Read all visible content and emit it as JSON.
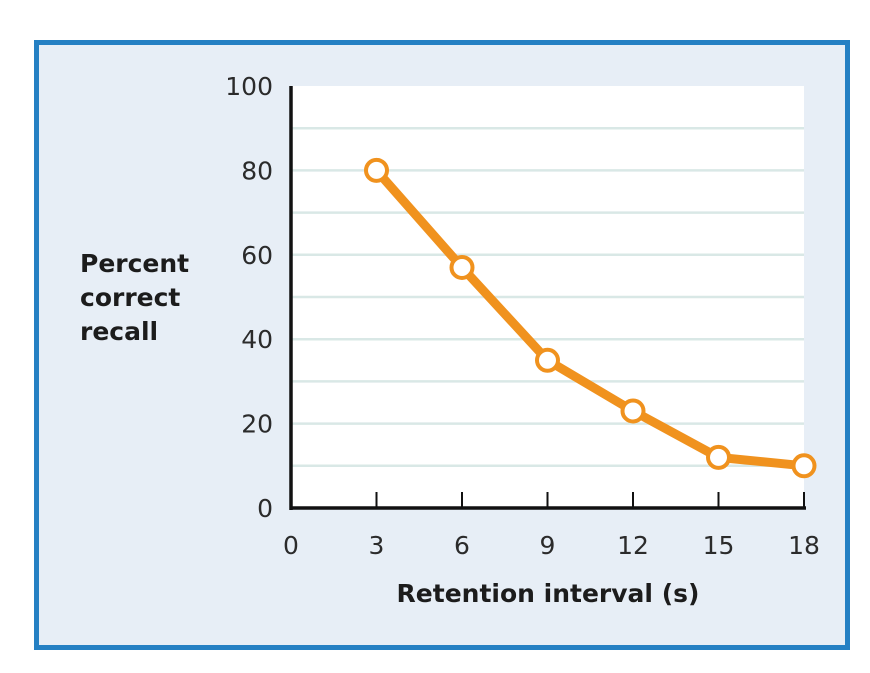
{
  "chart_data": {
    "type": "line",
    "title": "",
    "xlabel": "Retention interval (s)",
    "ylabel_lines": [
      "Percent",
      "correct",
      "recall"
    ],
    "xlim": [
      0,
      18
    ],
    "ylim": [
      0,
      100
    ],
    "x_ticks": [
      0,
      3,
      6,
      9,
      12,
      15,
      18
    ],
    "y_ticks": [
      0,
      20,
      40,
      60,
      80,
      100
    ],
    "gridlines_y": [
      10,
      20,
      30,
      40,
      50,
      60,
      70,
      80,
      90
    ],
    "grid": true,
    "series": [
      {
        "name": "Recall",
        "color": "#f0921e",
        "x": [
          3,
          6,
          9,
          12,
          15,
          18
        ],
        "y": [
          80,
          57,
          35,
          23,
          12,
          10
        ]
      }
    ]
  },
  "colors": {
    "frame_border": "#2580c3",
    "frame_bg": "#e7eef6",
    "plot_bg": "#ffffff",
    "grid": "#d9e8e6",
    "line": "#f0921e",
    "axis": "#111111"
  }
}
